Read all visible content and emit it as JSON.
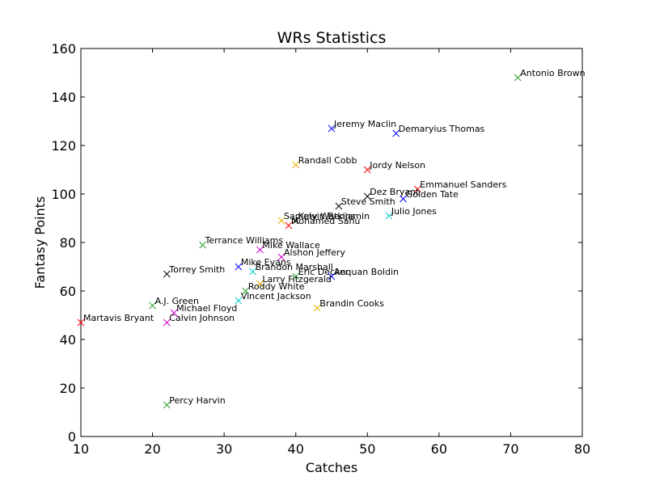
{
  "chart_data": {
    "type": "scatter",
    "title": "WRs Statistics",
    "xlabel": "Catches",
    "ylabel": "Fantasy Points",
    "xlim": [
      10,
      80
    ],
    "ylim": [
      0,
      160
    ],
    "xticks": [
      "10",
      "20",
      "30",
      "40",
      "50",
      "60",
      "70",
      "80"
    ],
    "yticks": [
      "0",
      "20",
      "40",
      "60",
      "80",
      "100",
      "120",
      "140",
      "160"
    ],
    "grid": false,
    "marker": "x",
    "points": [
      {
        "label": "Antonio Brown",
        "x": 71,
        "y": 148,
        "color": "#2ca02c"
      },
      {
        "label": "Jeremy Maclin",
        "x": 45,
        "y": 127,
        "color": "#0000ff"
      },
      {
        "label": "Demaryius Thomas",
        "x": 54,
        "y": 125,
        "color": "#0000ff"
      },
      {
        "label": "Randall Cobb",
        "x": 40,
        "y": 112,
        "color": "#e6b400"
      },
      {
        "label": "Jordy Nelson",
        "x": 50,
        "y": 110,
        "color": "#ff0000"
      },
      {
        "label": "Emmanuel Sanders",
        "x": 57,
        "y": 102,
        "color": "#ff0000"
      },
      {
        "label": "Dez Bryant",
        "x": 50,
        "y": 99,
        "color": "#000000"
      },
      {
        "label": "Golden Tate",
        "x": 55,
        "y": 98,
        "color": "#0000ff"
      },
      {
        "label": "Steve Smith",
        "x": 46,
        "y": 95,
        "color": "#000000"
      },
      {
        "label": "Julio Jones",
        "x": 53,
        "y": 91,
        "color": "#00cccc"
      },
      {
        "label": "Sammy Watkins",
        "x": 38,
        "y": 89,
        "color": "#e6b400"
      },
      {
        "label": "Kelvin Benjamin",
        "x": 40,
        "y": 89,
        "color": "#000000"
      },
      {
        "label": "Mohamed Sanu",
        "x": 39,
        "y": 87,
        "color": "#ff0000"
      },
      {
        "label": "Terrance Williams",
        "x": 27,
        "y": 79,
        "color": "#2ca02c"
      },
      {
        "label": "Mike Wallace",
        "x": 35,
        "y": 77,
        "color": "#cc00cc"
      },
      {
        "label": "Alshon Jeffery",
        "x": 38,
        "y": 74,
        "color": "#cc00cc"
      },
      {
        "label": "Mike Evans",
        "x": 32,
        "y": 70,
        "color": "#0000ff"
      },
      {
        "label": "Brandon Marshall",
        "x": 34,
        "y": 68,
        "color": "#00cccc"
      },
      {
        "label": "Eric Decker",
        "x": 40,
        "y": 66,
        "color": "#2ca02c"
      },
      {
        "label": "Anquan Boldin",
        "x": 45,
        "y": 66,
        "color": "#0000ff"
      },
      {
        "label": "Torrey Smith",
        "x": 22,
        "y": 67,
        "color": "#000000"
      },
      {
        "label": "Larry Fitzgerald",
        "x": 35,
        "y": 63,
        "color": "#e6b400"
      },
      {
        "label": "Roddy White",
        "x": 33,
        "y": 60,
        "color": "#2ca02c"
      },
      {
        "label": "Vincent Jackson",
        "x": 32,
        "y": 56,
        "color": "#00cccc"
      },
      {
        "label": "A.J. Green",
        "x": 20,
        "y": 54,
        "color": "#2ca02c"
      },
      {
        "label": "Brandin Cooks",
        "x": 43,
        "y": 53,
        "color": "#e6b400"
      },
      {
        "label": "Michael Floyd",
        "x": 23,
        "y": 51,
        "color": "#cc00cc"
      },
      {
        "label": "Martavis Bryant",
        "x": 10,
        "y": 47,
        "color": "#ff0000"
      },
      {
        "label": "Calvin Johnson",
        "x": 22,
        "y": 47,
        "color": "#cc00cc"
      },
      {
        "label": "Percy Harvin",
        "x": 22,
        "y": 13,
        "color": "#2ca02c"
      }
    ]
  }
}
